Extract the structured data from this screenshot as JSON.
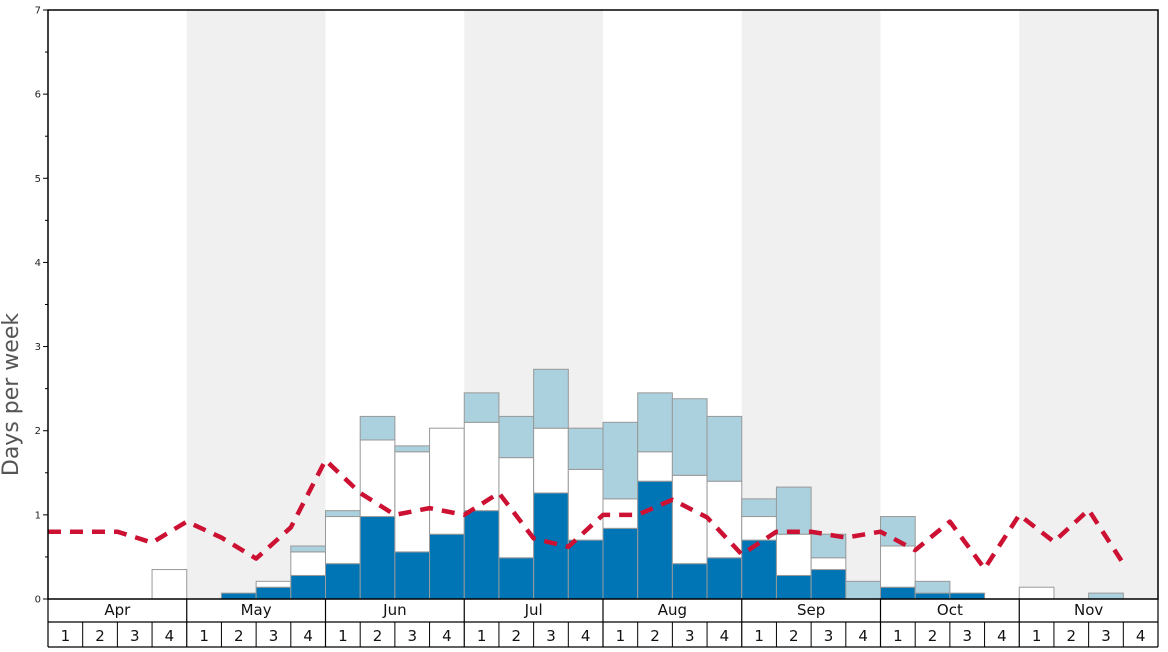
{
  "chart_data": {
    "type": "bar",
    "stacked": true,
    "title": "",
    "ylabel": "Days per week",
    "xlabel": "",
    "ylim": [
      0,
      7
    ],
    "y_ticks": [
      "0",
      "1",
      "2",
      "3",
      "4",
      "5",
      "6",
      "7"
    ],
    "months": [
      "Apr",
      "May",
      "Jun",
      "Jul",
      "Aug",
      "Sep",
      "Oct",
      "Nov"
    ],
    "week_labels": [
      "1",
      "2",
      "3",
      "4"
    ],
    "alternate_month_shading": true,
    "colors": {
      "dark_segment": "#0075b6",
      "white_segment": "#ffffff",
      "light_segment": "#acd1de",
      "dashed_line": "#cc1133",
      "month_shade": "#f0f0f0",
      "bar_stroke": "#999999"
    },
    "series": [
      {
        "values": [
          0,
          0,
          0,
          0,
          0,
          0.07,
          0.14,
          0.28,
          0.42,
          0.98,
          0.56,
          0.77,
          1.05,
          0.49,
          1.26,
          0.7,
          0.84,
          1.4,
          0.42,
          0.49,
          0.7,
          0.28,
          0.35,
          0,
          0.14,
          0.07,
          0.07,
          0,
          0,
          0,
          0,
          0
        ]
      },
      {
        "values": [
          0,
          0,
          0,
          0.35,
          0,
          0,
          0.07,
          0.28,
          0.56,
          0.91,
          1.19,
          1.26,
          1.05,
          1.19,
          0.77,
          0.84,
          0.35,
          0.35,
          1.05,
          0.91,
          0.28,
          0.49,
          0.14,
          0,
          0.49,
          0,
          0,
          0,
          0.14,
          0,
          0,
          0
        ]
      },
      {
        "values": [
          0,
          0,
          0,
          0,
          0,
          0,
          0,
          0.07,
          0.07,
          0.28,
          0.07,
          0,
          0.35,
          0.49,
          0.7,
          0.49,
          0.91,
          0.7,
          0.91,
          0.77,
          0.21,
          0.56,
          0.28,
          0.21,
          0.35,
          0.14,
          0,
          0,
          0,
          0,
          0.07,
          0
        ]
      }
    ],
    "line": {
      "style": "dashed",
      "values": [
        0.8,
        0.8,
        0.8,
        0.67,
        0.92,
        0.73,
        0.48,
        0.85,
        1.65,
        1.26,
        1.0,
        1.08,
        1.0,
        1.26,
        0.72,
        0.62,
        1.0,
        1.0,
        1.18,
        0.97,
        0.53,
        0.8,
        0.8,
        0.73,
        0.8,
        0.58,
        0.92,
        0.36,
        1.0,
        0.68,
        1.06,
        0.42
      ]
    }
  }
}
